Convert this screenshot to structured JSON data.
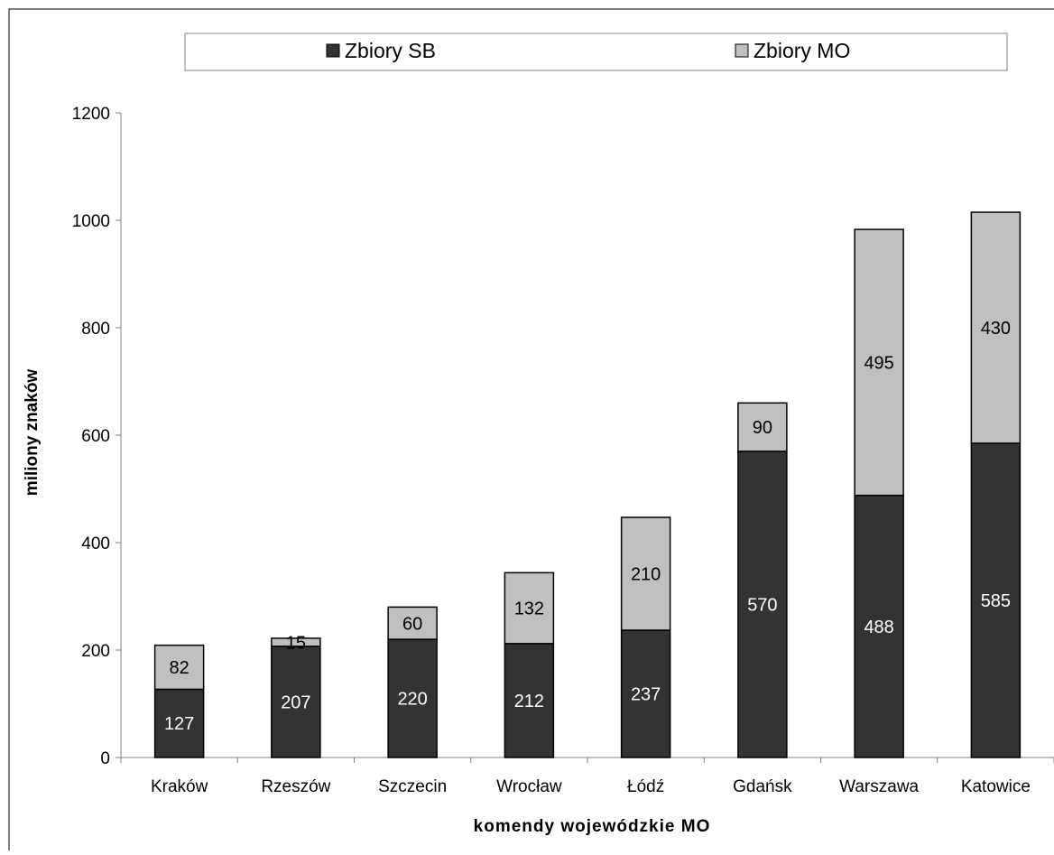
{
  "chart_data": {
    "type": "bar",
    "stacked": true,
    "categories": [
      "Kraków",
      "Rzeszów",
      "Szczecin",
      "Wrocław",
      "Łódź",
      "Gdańsk",
      "Warszawa",
      "Katowice"
    ],
    "series": [
      {
        "name": "Zbiory SB",
        "color": "#333333",
        "label_color": "#ffffff",
        "values": [
          127,
          207,
          220,
          212,
          237,
          570,
          488,
          585
        ]
      },
      {
        "name": "Zbiory MO",
        "color": "#c0c0c0",
        "label_color": "#000000",
        "values": [
          82,
          15,
          60,
          132,
          210,
          90,
          495,
          430
        ]
      }
    ],
    "xlabel": "komendy wojewódzkie MO",
    "ylabel": "miliony znaków",
    "ylim": [
      0,
      1200
    ],
    "yticks": [
      "0",
      "200",
      "400",
      "600",
      "800",
      "1000",
      "1200"
    ],
    "grid": false,
    "legend_position": "top"
  }
}
